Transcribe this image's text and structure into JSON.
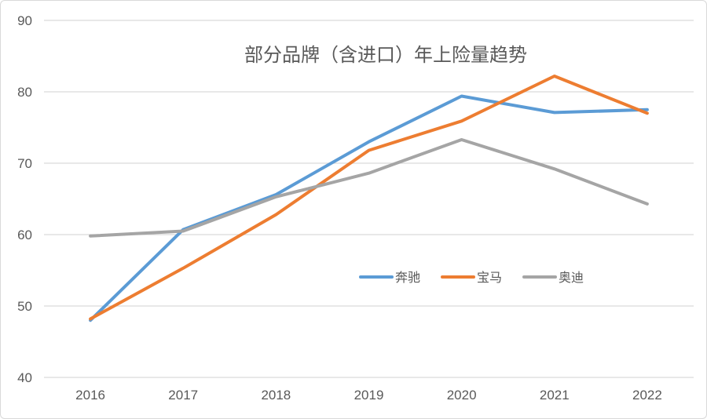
{
  "chart_data": {
    "type": "line",
    "title": "部分品牌（含进口）年上险量趋势",
    "xlabel": "",
    "ylabel": "",
    "categories": [
      "2016",
      "2017",
      "2018",
      "2019",
      "2020",
      "2021",
      "2022"
    ],
    "ylim": [
      40,
      90
    ],
    "yticks": [
      40,
      50,
      60,
      70,
      80,
      90
    ],
    "grid": true,
    "legend_position": "right-center",
    "series": [
      {
        "name": "奔驰",
        "color": "#5b9bd5",
        "values": [
          48.0,
          60.7,
          65.6,
          73.0,
          79.4,
          77.1,
          77.5
        ]
      },
      {
        "name": "宝马",
        "color": "#ed7d31",
        "values": [
          48.2,
          55.3,
          62.8,
          71.8,
          75.9,
          82.2,
          77.0
        ]
      },
      {
        "name": "奥迪",
        "color": "#a5a5a5",
        "values": [
          59.8,
          60.5,
          65.3,
          68.6,
          73.3,
          69.2,
          64.3
        ]
      }
    ]
  }
}
